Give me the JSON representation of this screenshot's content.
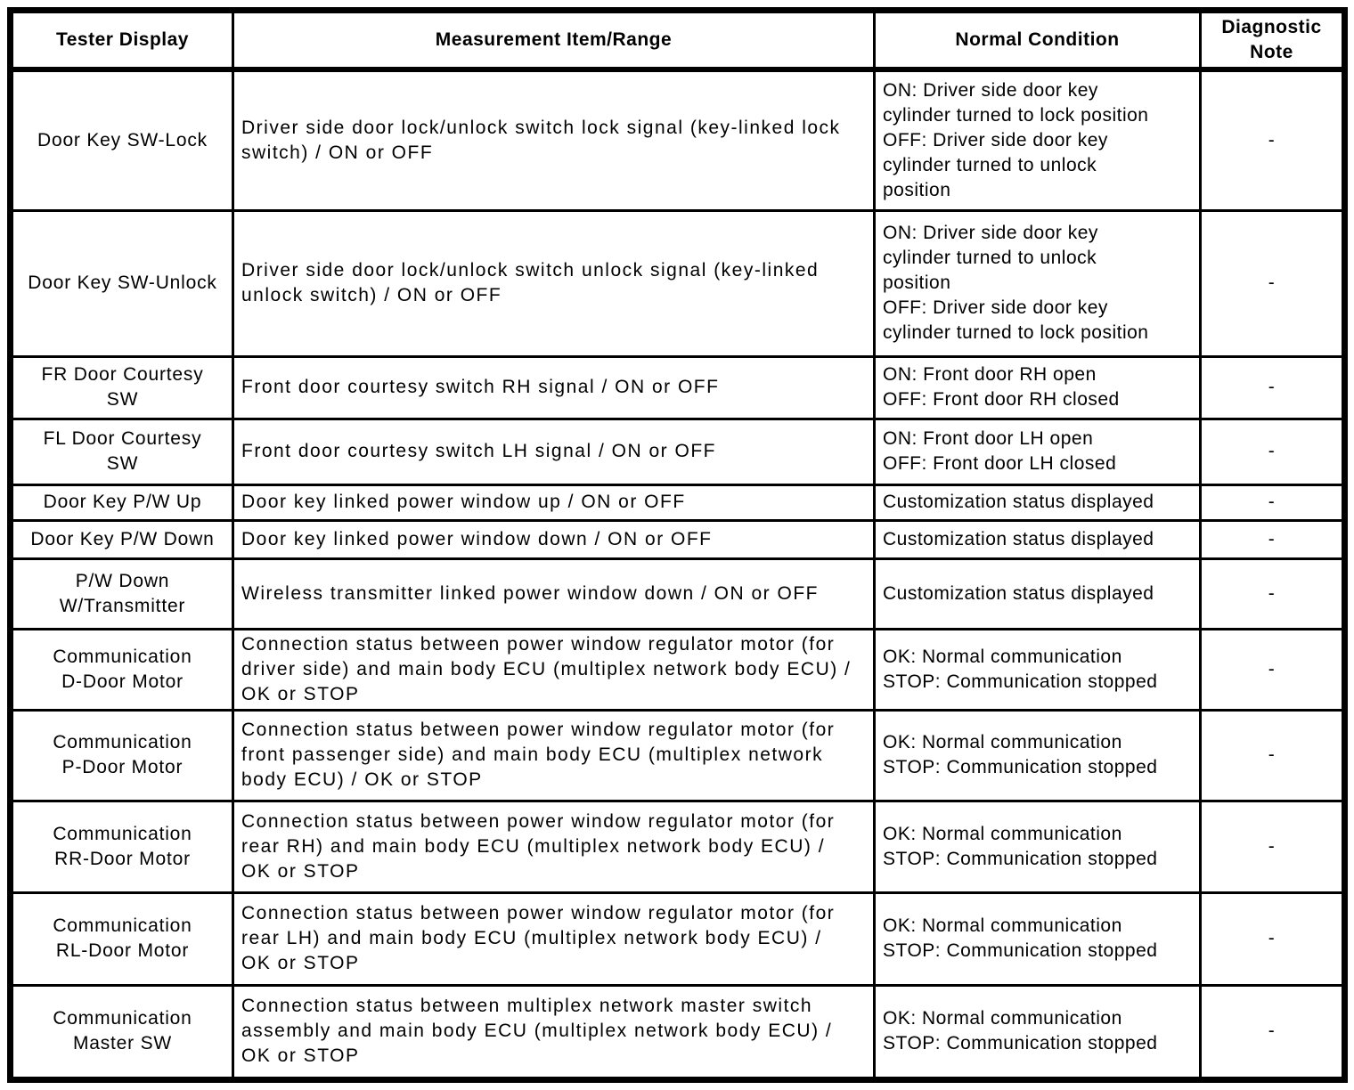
{
  "colors": {
    "ink": "#000000",
    "paper": "#ffffff"
  },
  "table": {
    "headers": [
      "Tester Display",
      "Measurement Item/Range",
      "Normal Condition",
      "Diagnostic Note"
    ],
    "rows": [
      {
        "tester_display": [
          "Door Key SW-Lock"
        ],
        "measurement_item_range": [
          "Driver side door lock/unlock switch lock signal (key-linked lock",
          "switch) / ON or OFF"
        ],
        "normal_condition": [
          "ON: Driver side door key",
          "cylinder turned to lock position",
          "OFF: Driver side door key",
          "cylinder turned to unlock",
          "position"
        ],
        "diagnostic_note": "-"
      },
      {
        "tester_display": [
          "Door Key SW-Unlock"
        ],
        "measurement_item_range": [
          "Driver side door lock/unlock switch unlock signal (key-linked",
          "unlock switch) / ON or OFF"
        ],
        "normal_condition": [
          "ON: Driver side door key",
          "cylinder turned to unlock",
          "position",
          "OFF: Driver side door key",
          "cylinder turned to lock position"
        ],
        "diagnostic_note": "-"
      },
      {
        "tester_display": [
          "FR Door Courtesy",
          "SW"
        ],
        "measurement_item_range": [
          "Front door courtesy switch RH signal / ON or OFF"
        ],
        "normal_condition": [
          "ON: Front door RH open",
          "OFF: Front door RH closed"
        ],
        "diagnostic_note": "-"
      },
      {
        "tester_display": [
          "FL Door Courtesy",
          "SW"
        ],
        "measurement_item_range": [
          "Front door courtesy switch LH signal / ON or OFF"
        ],
        "normal_condition": [
          "ON: Front door LH open",
          "OFF: Front door LH closed"
        ],
        "diagnostic_note": "-"
      },
      {
        "tester_display": [
          "Door Key P/W Up"
        ],
        "measurement_item_range": [
          "Door key linked power window up / ON or OFF"
        ],
        "normal_condition": [
          "Customization status displayed"
        ],
        "diagnostic_note": "-"
      },
      {
        "tester_display": [
          "Door Key P/W Down"
        ],
        "measurement_item_range": [
          "Door key linked power window down / ON or OFF"
        ],
        "normal_condition": [
          "Customization status displayed"
        ],
        "diagnostic_note": "-"
      },
      {
        "tester_display": [
          "P/W Down",
          "W/Transmitter"
        ],
        "measurement_item_range": [
          "Wireless transmitter linked power window down / ON or OFF"
        ],
        "normal_condition": [
          "Customization status displayed"
        ],
        "diagnostic_note": "-"
      },
      {
        "tester_display": [
          "Communication",
          "D-Door Motor"
        ],
        "measurement_item_range": [
          "Connection status between power window regulator motor (for",
          "driver side) and main body ECU (multiplex network body ECU) /",
          "OK or STOP"
        ],
        "normal_condition": [
          "OK: Normal communication",
          "STOP: Communication stopped"
        ],
        "diagnostic_note": "-"
      },
      {
        "tester_display": [
          "Communication",
          "P-Door Motor"
        ],
        "measurement_item_range": [
          "Connection status between power window regulator motor (for",
          "front passenger side) and main body ECU (multiplex network",
          "body ECU) / OK or STOP"
        ],
        "normal_condition": [
          "OK: Normal communication",
          "STOP: Communication stopped"
        ],
        "diagnostic_note": "-"
      },
      {
        "tester_display": [
          "Communication",
          "RR-Door Motor"
        ],
        "measurement_item_range": [
          "Connection status between power window regulator motor (for",
          "rear RH) and main body ECU (multiplex network body ECU) /",
          "OK or STOP"
        ],
        "normal_condition": [
          "OK: Normal communication",
          "STOP: Communication stopped"
        ],
        "diagnostic_note": "-"
      },
      {
        "tester_display": [
          "Communication",
          "RL-Door Motor"
        ],
        "measurement_item_range": [
          "Connection status between power window regulator motor (for",
          "rear LH) and main body ECU (multiplex network body ECU) /",
          "OK or STOP"
        ],
        "normal_condition": [
          "OK: Normal communication",
          "STOP: Communication stopped"
        ],
        "diagnostic_note": "-"
      },
      {
        "tester_display": [
          "Communication",
          "Master SW"
        ],
        "measurement_item_range": [
          "Connection status between multiplex network master switch",
          "assembly and main body ECU (multiplex network body ECU) /",
          "OK or STOP"
        ],
        "normal_condition": [
          "OK: Normal communication",
          "STOP: Communication stopped"
        ],
        "diagnostic_note": "-"
      }
    ]
  }
}
